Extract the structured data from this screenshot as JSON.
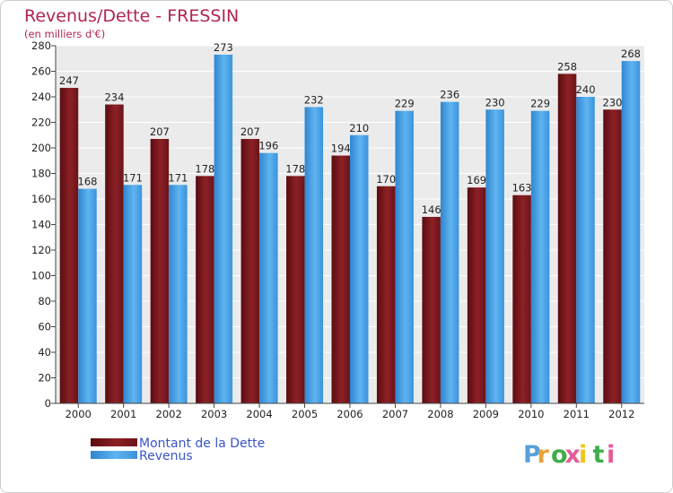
{
  "chart_data": {
    "type": "bar",
    "title": "Revenus/Dette - FRESSIN",
    "subtitle": "(en milliers d'€)",
    "categories": [
      "2000",
      "2001",
      "2002",
      "2003",
      "2004",
      "2005",
      "2006",
      "2007",
      "2008",
      "2009",
      "2010",
      "2011",
      "2012"
    ],
    "series": [
      {
        "name": "Montant de la Dette",
        "color": "#7a1a1f",
        "values": [
          247,
          234,
          207,
          178,
          207,
          178,
          194,
          170,
          146,
          169,
          163,
          258,
          230
        ]
      },
      {
        "name": "Revenus",
        "color": "#4aa3e8",
        "values": [
          168,
          171,
          171,
          273,
          196,
          232,
          210,
          229,
          236,
          230,
          229,
          240,
          268
        ]
      }
    ],
    "ylim": [
      0,
      280
    ],
    "yticks": [
      0,
      20,
      40,
      60,
      80,
      100,
      120,
      140,
      160,
      180,
      200,
      220,
      240,
      260,
      280
    ],
    "grid": true,
    "legend_position": "bottom-left"
  },
  "branding": {
    "logo_letters": [
      "P",
      "r",
      "o",
      "x",
      "i",
      "t",
      "i"
    ],
    "logo_colors": [
      "#5aa0d8",
      "#e8a23a",
      "#3fae49",
      "#e35d9a",
      "#f0c419",
      "#3fae49",
      "#e35d9a"
    ]
  }
}
